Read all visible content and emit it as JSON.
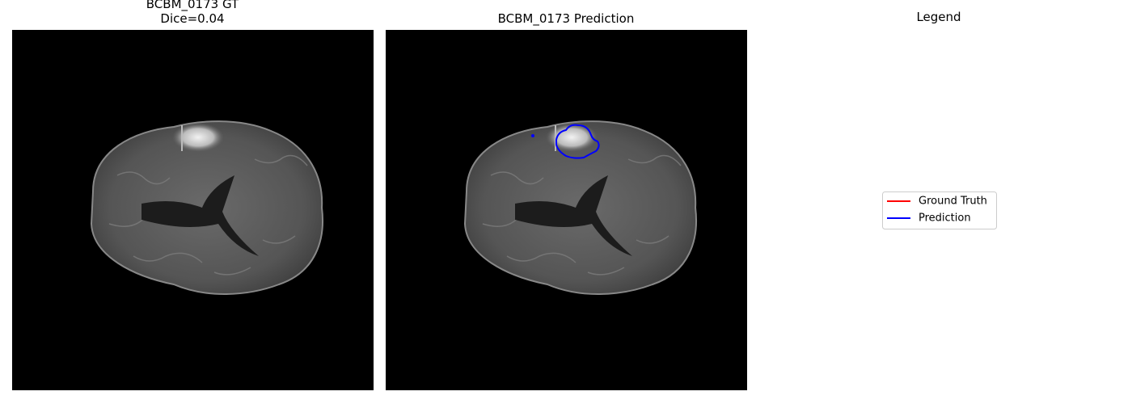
{
  "panels": [
    {
      "title_lines": [
        "BCBM_0173 GT",
        "Dice=0.04"
      ]
    },
    {
      "title": "BCBM_0173 Prediction"
    }
  ],
  "legend": {
    "title": "Legend",
    "entries": [
      {
        "label": "Ground Truth",
        "color": "#ff0000"
      },
      {
        "label": "Prediction",
        "color": "#0000ff"
      }
    ]
  }
}
